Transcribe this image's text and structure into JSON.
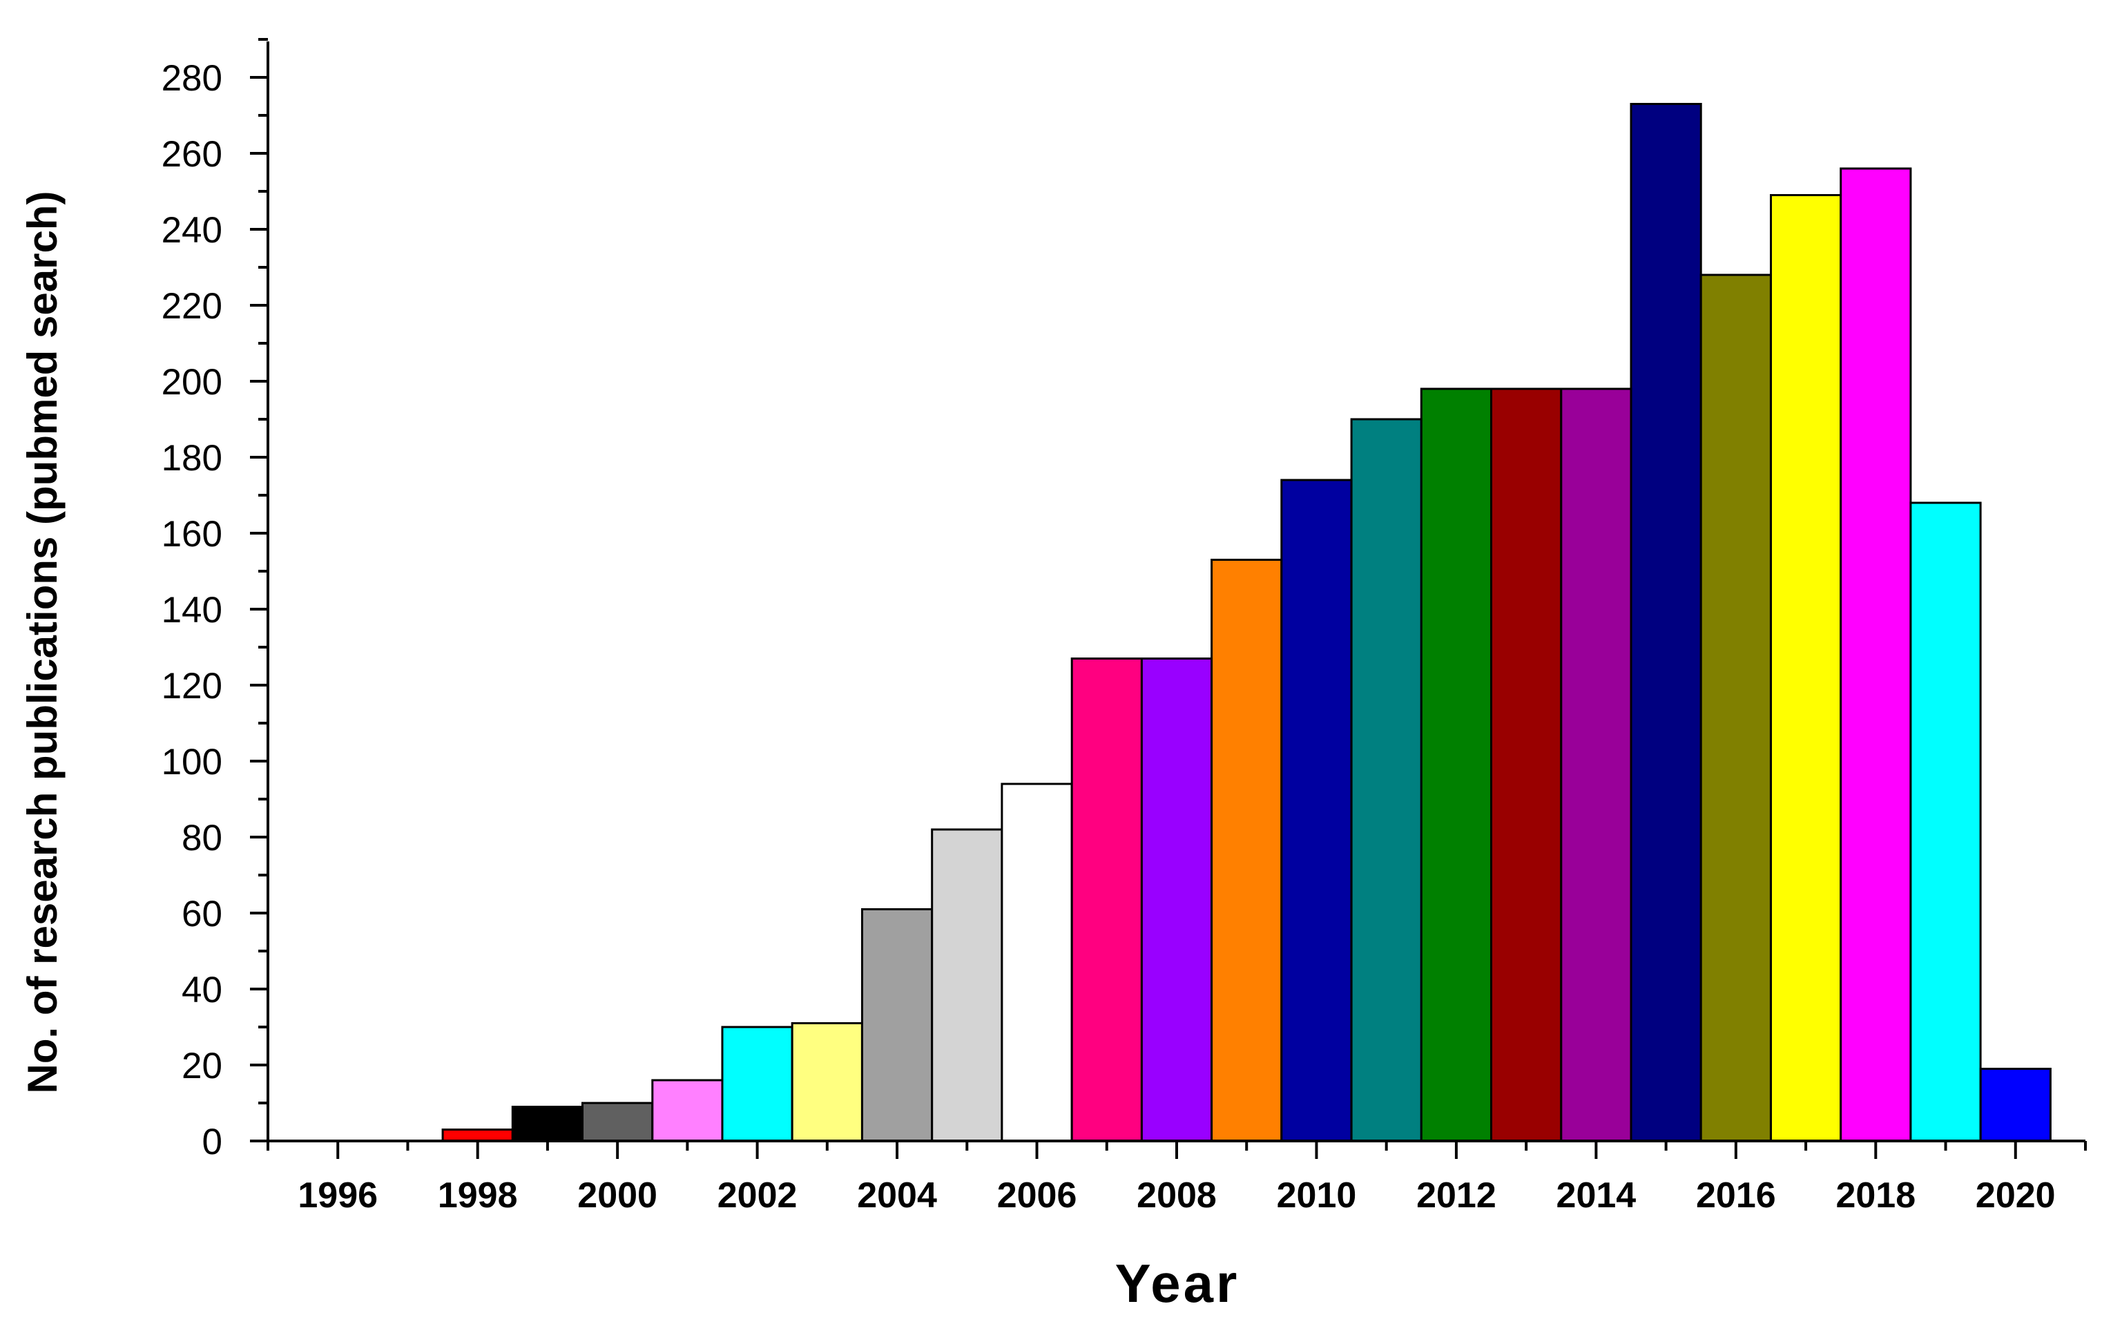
{
  "chart_data": {
    "type": "bar",
    "title": "",
    "xlabel": "Year",
    "ylabel": "No. of research publications (pubmed search)",
    "ylim": [
      0,
      290
    ],
    "xlim": [
      1995,
      2021
    ],
    "yticks": [
      0,
      20,
      40,
      60,
      80,
      100,
      120,
      140,
      160,
      180,
      200,
      220,
      240,
      260,
      280
    ],
    "xticks": [
      1996,
      1998,
      2000,
      2002,
      2004,
      2006,
      2008,
      2010,
      2012,
      2014,
      2016,
      2018,
      2020
    ],
    "grid": false,
    "legend": "none",
    "categories": [
      "1996",
      "1997",
      "1998",
      "1999",
      "2000",
      "2001",
      "2002",
      "2003",
      "2004",
      "2005",
      "2006",
      "2007",
      "2008",
      "2009",
      "2010",
      "2011",
      "2012",
      "2013",
      "2014",
      "2015",
      "2016",
      "2017",
      "2018",
      "2019",
      "2020"
    ],
    "x": [
      1996,
      1997,
      1998,
      1999,
      2000,
      2001,
      2002,
      2003,
      2004,
      2005,
      2006,
      2007,
      2008,
      2009,
      2010,
      2011,
      2012,
      2013,
      2014,
      2015,
      2016,
      2017,
      2018,
      2019,
      2020
    ],
    "values": [
      0,
      0,
      3,
      9,
      10,
      16,
      30,
      31,
      61,
      82,
      94,
      127,
      127,
      153,
      174,
      190,
      198,
      198,
      198,
      273,
      228,
      249,
      256,
      168,
      19
    ],
    "colors": [
      "#ffffff",
      "#ffffff",
      "#ff0000",
      "#000000",
      "#606060",
      "#ff80ff",
      "#00ffff",
      "#ffff80",
      "#a0a0a0",
      "#d4d4d4",
      "#ffffff",
      "#ff0080",
      "#9900ff",
      "#ff8000",
      "#0000a0",
      "#008080",
      "#008000",
      "#990000",
      "#990099",
      "#000080",
      "#808000",
      "#ffff00",
      "#ff00ff",
      "#00ffff",
      "#0000ff"
    ]
  }
}
